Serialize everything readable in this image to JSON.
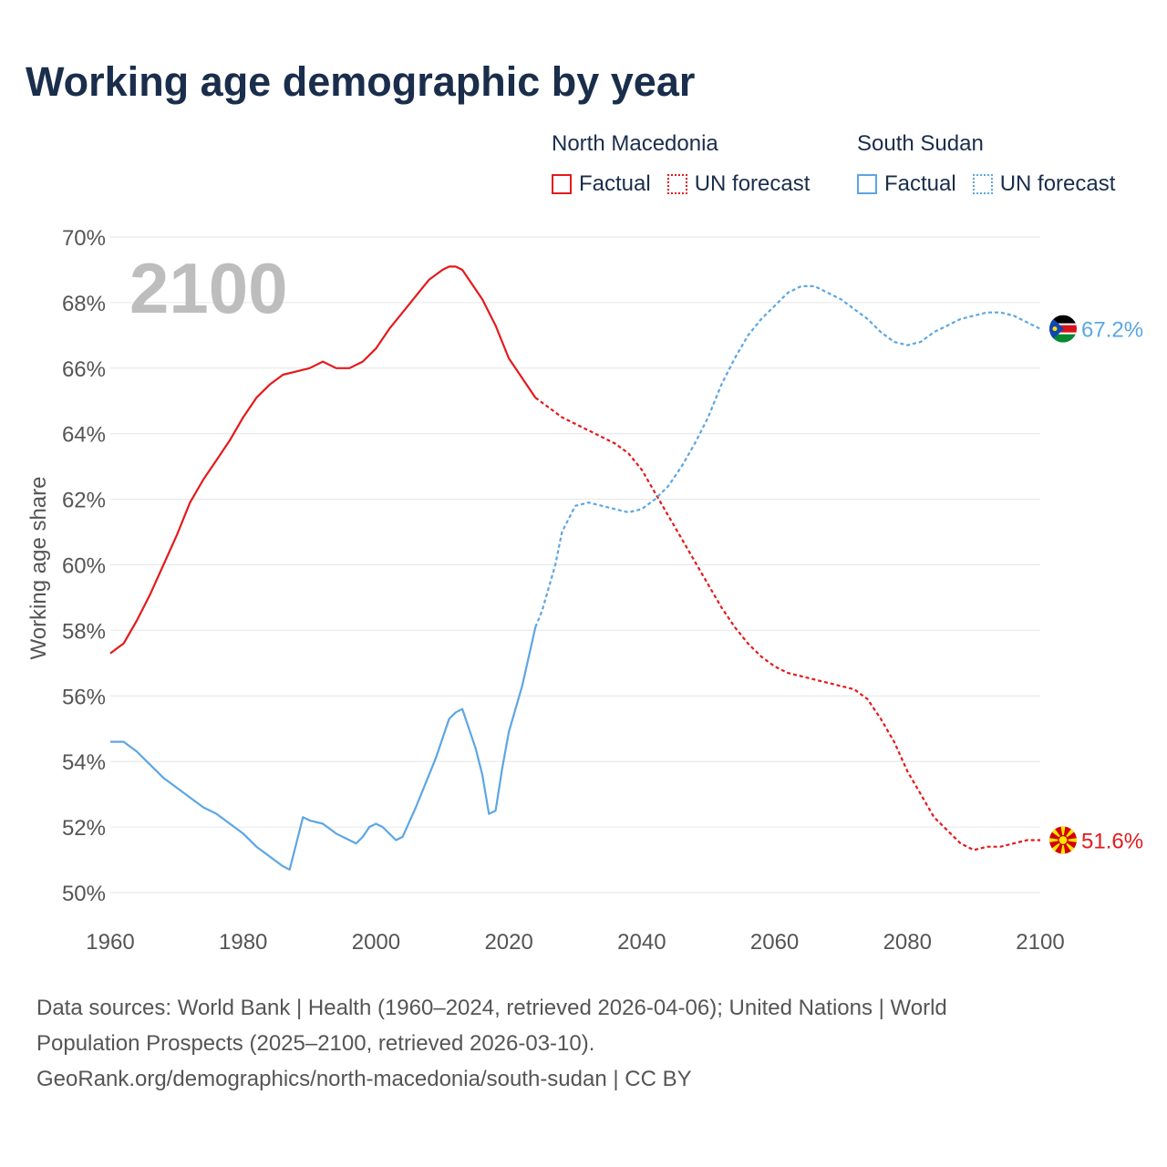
{
  "title": "Working age demographic by year",
  "legend": {
    "groups": [
      {
        "name": "North Macedonia",
        "color": "#e31a1c",
        "factual_label": "Factual",
        "forecast_label": "UN forecast"
      },
      {
        "name": "South Sudan",
        "color": "#5ca6e3",
        "factual_label": "Factual",
        "forecast_label": "UN forecast"
      }
    ]
  },
  "footer": {
    "line1": "Data sources: World Bank | Health (1960–2024, retrieved 2026-04-06); United Nations | World",
    "line2": "Population Prospects (2025–2100, retrieved 2026-03-10).",
    "line3": "GeoRank.org/demographics/north-macedonia/south-sudan | CC BY"
  },
  "chart_data": {
    "type": "line",
    "title": "Working age demographic by year",
    "ylabel": "Working age share",
    "xlabel": "",
    "year_label": "2100",
    "xlim": [
      1960,
      2100
    ],
    "ylim": [
      50,
      70
    ],
    "x_ticks": [
      1960,
      1980,
      2000,
      2020,
      2040,
      2060,
      2080,
      2100
    ],
    "y_ticks": [
      50,
      52,
      54,
      56,
      58,
      60,
      62,
      64,
      66,
      68,
      70
    ],
    "y_tick_labels": [
      "50%",
      "52%",
      "54%",
      "56%",
      "58%",
      "60%",
      "62%",
      "64%",
      "66%",
      "68%",
      "70%"
    ],
    "forecast_start": 2024,
    "series": [
      {
        "name": "North Macedonia",
        "color": "#e31a1c",
        "end_label": "51.6%",
        "flag": "north-macedonia-flag",
        "points": [
          [
            1960,
            57.3
          ],
          [
            1962,
            57.6
          ],
          [
            1964,
            58.3
          ],
          [
            1966,
            59.1
          ],
          [
            1968,
            60.0
          ],
          [
            1970,
            60.9
          ],
          [
            1972,
            61.9
          ],
          [
            1974,
            62.6
          ],
          [
            1976,
            63.2
          ],
          [
            1978,
            63.8
          ],
          [
            1980,
            64.5
          ],
          [
            1982,
            65.1
          ],
          [
            1984,
            65.5
          ],
          [
            1986,
            65.8
          ],
          [
            1988,
            65.9
          ],
          [
            1990,
            66.0
          ],
          [
            1992,
            66.2
          ],
          [
            1994,
            66.0
          ],
          [
            1996,
            66.0
          ],
          [
            1998,
            66.2
          ],
          [
            2000,
            66.6
          ],
          [
            2002,
            67.2
          ],
          [
            2004,
            67.7
          ],
          [
            2006,
            68.2
          ],
          [
            2008,
            68.7
          ],
          [
            2010,
            69.0
          ],
          [
            2011,
            69.1
          ],
          [
            2012,
            69.1
          ],
          [
            2013,
            69.0
          ],
          [
            2014,
            68.7
          ],
          [
            2016,
            68.1
          ],
          [
            2018,
            67.3
          ],
          [
            2020,
            66.3
          ],
          [
            2022,
            65.7
          ],
          [
            2024,
            65.1
          ],
          [
            2026,
            64.8
          ],
          [
            2028,
            64.5
          ],
          [
            2030,
            64.3
          ],
          [
            2032,
            64.1
          ],
          [
            2034,
            63.9
          ],
          [
            2036,
            63.7
          ],
          [
            2038,
            63.4
          ],
          [
            2040,
            62.9
          ],
          [
            2042,
            62.2
          ],
          [
            2044,
            61.5
          ],
          [
            2046,
            60.8
          ],
          [
            2048,
            60.1
          ],
          [
            2050,
            59.4
          ],
          [
            2052,
            58.7
          ],
          [
            2054,
            58.1
          ],
          [
            2056,
            57.6
          ],
          [
            2058,
            57.2
          ],
          [
            2060,
            56.9
          ],
          [
            2062,
            56.7
          ],
          [
            2064,
            56.6
          ],
          [
            2066,
            56.5
          ],
          [
            2068,
            56.4
          ],
          [
            2070,
            56.3
          ],
          [
            2072,
            56.2
          ],
          [
            2074,
            55.9
          ],
          [
            2076,
            55.3
          ],
          [
            2078,
            54.6
          ],
          [
            2080,
            53.7
          ],
          [
            2082,
            53.0
          ],
          [
            2084,
            52.3
          ],
          [
            2086,
            51.9
          ],
          [
            2088,
            51.5
          ],
          [
            2090,
            51.3
          ],
          [
            2092,
            51.4
          ],
          [
            2094,
            51.4
          ],
          [
            2096,
            51.5
          ],
          [
            2098,
            51.6
          ],
          [
            2100,
            51.6
          ]
        ]
      },
      {
        "name": "South Sudan",
        "color": "#5ca6e3",
        "end_label": "67.2%",
        "flag": "south-sudan-flag",
        "points": [
          [
            1960,
            54.6
          ],
          [
            1962,
            54.6
          ],
          [
            1964,
            54.3
          ],
          [
            1966,
            53.9
          ],
          [
            1968,
            53.5
          ],
          [
            1970,
            53.2
          ],
          [
            1972,
            52.9
          ],
          [
            1974,
            52.6
          ],
          [
            1976,
            52.4
          ],
          [
            1978,
            52.1
          ],
          [
            1980,
            51.8
          ],
          [
            1982,
            51.4
          ],
          [
            1984,
            51.1
          ],
          [
            1986,
            50.8
          ],
          [
            1987,
            50.7
          ],
          [
            1988,
            51.5
          ],
          [
            1989,
            52.3
          ],
          [
            1990,
            52.2
          ],
          [
            1992,
            52.1
          ],
          [
            1994,
            51.8
          ],
          [
            1996,
            51.6
          ],
          [
            1997,
            51.5
          ],
          [
            1998,
            51.7
          ],
          [
            1999,
            52.0
          ],
          [
            2000,
            52.1
          ],
          [
            2001,
            52.0
          ],
          [
            2003,
            51.6
          ],
          [
            2004,
            51.7
          ],
          [
            2006,
            52.6
          ],
          [
            2008,
            53.6
          ],
          [
            2009,
            54.1
          ],
          [
            2011,
            55.3
          ],
          [
            2012,
            55.5
          ],
          [
            2013,
            55.6
          ],
          [
            2015,
            54.4
          ],
          [
            2016,
            53.6
          ],
          [
            2017,
            52.4
          ],
          [
            2018,
            52.5
          ],
          [
            2019,
            53.8
          ],
          [
            2020,
            54.9
          ],
          [
            2022,
            56.3
          ],
          [
            2024,
            58.1
          ],
          [
            2025,
            58.6
          ],
          [
            2027,
            60.0
          ],
          [
            2028,
            61.0
          ],
          [
            2030,
            61.8
          ],
          [
            2032,
            61.9
          ],
          [
            2034,
            61.8
          ],
          [
            2036,
            61.7
          ],
          [
            2038,
            61.6
          ],
          [
            2040,
            61.7
          ],
          [
            2042,
            62.0
          ],
          [
            2044,
            62.4
          ],
          [
            2046,
            63.0
          ],
          [
            2048,
            63.7
          ],
          [
            2050,
            64.5
          ],
          [
            2052,
            65.5
          ],
          [
            2054,
            66.3
          ],
          [
            2056,
            67.0
          ],
          [
            2058,
            67.5
          ],
          [
            2060,
            67.9
          ],
          [
            2062,
            68.3
          ],
          [
            2064,
            68.5
          ],
          [
            2066,
            68.5
          ],
          [
            2068,
            68.3
          ],
          [
            2070,
            68.1
          ],
          [
            2072,
            67.8
          ],
          [
            2074,
            67.5
          ],
          [
            2076,
            67.1
          ],
          [
            2078,
            66.8
          ],
          [
            2080,
            66.7
          ],
          [
            2082,
            66.8
          ],
          [
            2084,
            67.1
          ],
          [
            2086,
            67.3
          ],
          [
            2088,
            67.5
          ],
          [
            2090,
            67.6
          ],
          [
            2092,
            67.7
          ],
          [
            2094,
            67.7
          ],
          [
            2096,
            67.6
          ],
          [
            2098,
            67.4
          ],
          [
            2100,
            67.2
          ]
        ]
      }
    ]
  }
}
